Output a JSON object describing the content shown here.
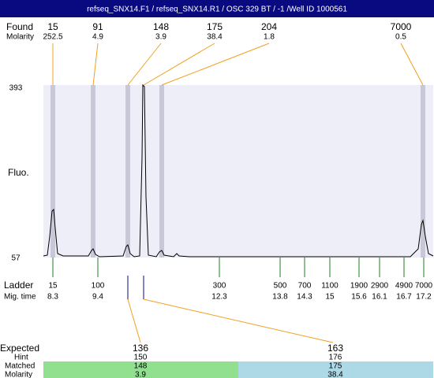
{
  "title": "refseq_SNX14.F1 / refseq_SNX14.R1 / OSC 329 BT  / -1  /Well ID 1000561",
  "found": {
    "label": "Found",
    "values": [
      15,
      91,
      148,
      175,
      204,
      7000
    ]
  },
  "molarity": {
    "label": "Molarity",
    "values": [
      252.5,
      4.9,
      3.9,
      38.4,
      1.8,
      0.5
    ]
  },
  "y_axis": {
    "label": "Fluo.",
    "max": 393,
    "min": 57
  },
  "ladder": {
    "label": "Ladder",
    "values": [
      15,
      100,
      300,
      500,
      700,
      1100,
      1900,
      2900,
      4900,
      7000
    ]
  },
  "mig_time": {
    "label": "Mig. time",
    "values": [
      8.3,
      9.4,
      12.3,
      13.8,
      14.3,
      15,
      15.6,
      16.1,
      16.7,
      17.2
    ]
  },
  "expected": {
    "label": "Expected",
    "values": [
      136,
      163
    ]
  },
  "hint": {
    "label": "Hint",
    "values": [
      150,
      176
    ]
  },
  "matched": {
    "label": "Matched",
    "values": [
      148,
      175
    ]
  },
  "matched_molarity": {
    "label": "Molarity",
    "values": [
      3.9,
      38.4
    ]
  }
}
